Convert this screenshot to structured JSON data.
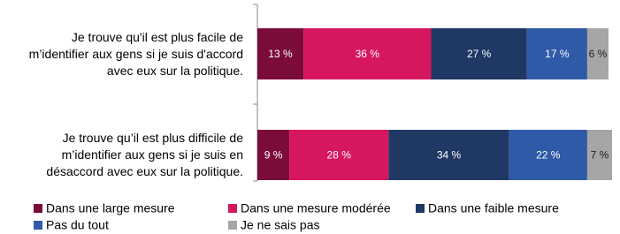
{
  "chart_data": {
    "type": "stacked-barh",
    "categories": [
      "Je trouve qu'il est plus facile de m’identifier aux gens si je suis d'accord avec eux sur la politique.",
      "Je trouve qu’il est plus difficile de m’identifier aux gens si je suis en désaccord avec eux sur la politique."
    ],
    "series": [
      {
        "name": "Dans une large mesure",
        "color": "#7b0c3a",
        "values": [
          13,
          9
        ],
        "value_labels": [
          "13 %",
          "9 %"
        ]
      },
      {
        "name": "Dans une mesure modérée",
        "color": "#d6165f",
        "values": [
          36,
          28
        ],
        "value_labels": [
          "36 %",
          "28 %"
        ]
      },
      {
        "name": "Dans une faible mesure",
        "color": "#1f3864",
        "values": [
          27,
          34
        ],
        "value_labels": [
          "27 %",
          "34 %"
        ]
      },
      {
        "name": "Pas du tout",
        "color": "#2f5aa8",
        "values": [
          17,
          22
        ],
        "value_labels": [
          "17 %",
          "22 %"
        ]
      },
      {
        "name": "Je ne sais pas",
        "color": "#a6a6a6",
        "values": [
          6,
          7
        ],
        "value_labels": [
          "6 %",
          "7 %"
        ]
      }
    ],
    "xlim": [
      0,
      100
    ]
  }
}
